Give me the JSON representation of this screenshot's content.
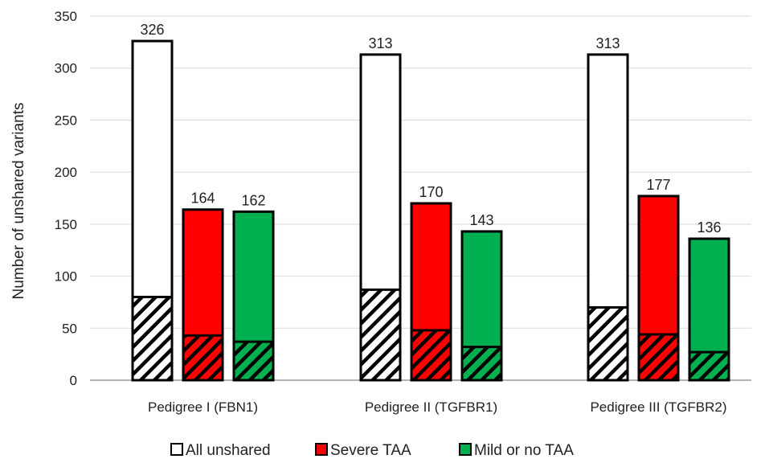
{
  "chart_data": {
    "type": "bar",
    "title": "",
    "xlabel": "",
    "ylabel": "Number of unshared variants",
    "ylim": [
      0,
      350
    ],
    "yticks": [
      0,
      50,
      100,
      150,
      200,
      250,
      300,
      350
    ],
    "grid": true,
    "legend_position": "bottom",
    "categories": [
      "Pedigree I (FBN1)",
      "Pedigree II (TGFBR1)",
      "Pedigree III (TGFBR2)"
    ],
    "series": [
      {
        "name": "All unshared",
        "values": [
          326,
          313,
          313
        ],
        "hatched_values": [
          80,
          87,
          70
        ],
        "color": "#ffffff"
      },
      {
        "name": "Severe TAA",
        "values": [
          164,
          170,
          177
        ],
        "hatched_values": [
          43,
          48,
          44
        ],
        "color": "#ff0000"
      },
      {
        "name": "Mild or no TAA",
        "values": [
          162,
          143,
          136
        ],
        "hatched_values": [
          37,
          32,
          27
        ],
        "color": "#00b050"
      }
    ]
  }
}
